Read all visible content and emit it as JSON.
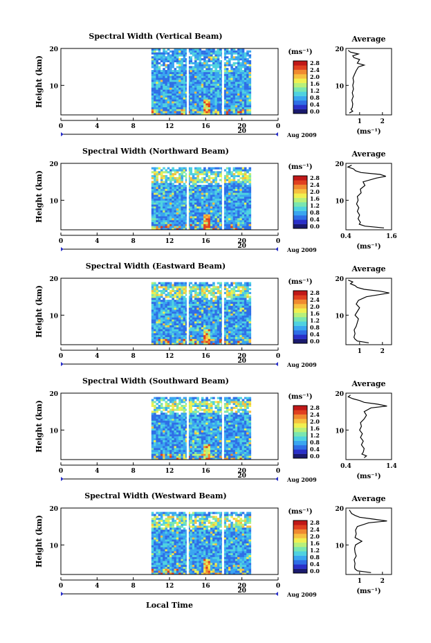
{
  "chart_data": {
    "type": "heatmap",
    "xlabel": "Local Time",
    "date_label": "Aug 2009",
    "date_day": "20",
    "unit": "(ms⁻¹)",
    "colorbar_ticks": [
      "2.8",
      "2.4",
      "2.0",
      "1.6",
      "1.2",
      "0.8",
      "0.4",
      "0.0"
    ],
    "colormap": [
      "#1a1a6e",
      "#2a30c8",
      "#2f6fe6",
      "#3aa6f0",
      "#4fd2e0",
      "#7ae6b0",
      "#b8f07a",
      "#f0f050",
      "#f6c040",
      "#f08a30",
      "#e04020",
      "#c01818"
    ],
    "x_ticks": [
      "0",
      "4",
      "8",
      "12",
      "16",
      "20",
      "0"
    ],
    "xlim": [
      0,
      24
    ],
    "ylim": [
      2,
      20
    ],
    "y_ticks": [
      "20",
      "10"
    ],
    "data_time_range": [
      10,
      21
    ],
    "gaps_hours": [
      13.9,
      17.8
    ],
    "panels": [
      {
        "title": "Spectral Width (Vertical Beam)",
        "ylabel": "Height (km)",
        "avg_title": "Average",
        "avg_xlabel": "(ms⁻¹)",
        "avg_xticks": [
          "1",
          "2"
        ],
        "avg_xlim": [
          0.4,
          2.4
        ],
        "profile": [
          [
            2.5,
            0.55
          ],
          [
            3,
            0.7
          ],
          [
            3.5,
            0.62
          ],
          [
            4,
            0.68
          ],
          [
            5,
            0.7
          ],
          [
            6,
            0.66
          ],
          [
            7,
            0.72
          ],
          [
            8,
            0.68
          ],
          [
            9,
            0.73
          ],
          [
            10,
            0.7
          ],
          [
            11,
            0.74
          ],
          [
            12,
            0.71
          ],
          [
            13,
            0.78
          ],
          [
            14,
            0.85
          ],
          [
            15,
            0.95
          ],
          [
            15.5,
            1.2
          ],
          [
            16,
            0.9
          ],
          [
            17,
            1.0
          ],
          [
            17.5,
            0.75
          ],
          [
            18,
            0.7
          ],
          [
            18.5,
            0.95
          ],
          [
            19,
            0.6
          ],
          [
            19.5,
            0.5
          ]
        ]
      },
      {
        "title": "Spectral Width (Northward Beam)",
        "ylabel": "Height (km)",
        "avg_title": "Average",
        "avg_xlabel": "(ms⁻¹)",
        "avg_xticks": [
          "0.4",
          "1.6"
        ],
        "avg_xlim": [
          0.4,
          1.6
        ],
        "profile": [
          [
            2.5,
            1.4
          ],
          [
            3,
            0.9
          ],
          [
            3.5,
            0.75
          ],
          [
            4,
            0.78
          ],
          [
            5,
            0.72
          ],
          [
            6,
            0.76
          ],
          [
            7,
            0.7
          ],
          [
            8,
            0.74
          ],
          [
            9,
            0.68
          ],
          [
            10,
            0.72
          ],
          [
            11,
            0.7
          ],
          [
            12,
            0.8
          ],
          [
            13,
            0.78
          ],
          [
            14,
            0.9
          ],
          [
            15,
            0.85
          ],
          [
            16,
            1.2
          ],
          [
            16.5,
            1.45
          ],
          [
            17,
            1.3
          ],
          [
            17.5,
            0.8
          ],
          [
            18,
            0.65
          ],
          [
            18.5,
            0.6
          ],
          [
            19,
            0.45
          ],
          [
            19.5,
            0.55
          ]
        ]
      },
      {
        "title": "Spectral Width (Eastward Beam)",
        "ylabel": "Height (km)",
        "avg_title": "Average",
        "avg_xlabel": "",
        "avg_xticks": [
          "1",
          "2"
        ],
        "avg_xlim": [
          0.4,
          2.4
        ],
        "profile": [
          [
            2.5,
            1.4
          ],
          [
            3,
            0.9
          ],
          [
            3.5,
            0.8
          ],
          [
            4,
            0.75
          ],
          [
            5,
            0.8
          ],
          [
            6,
            0.76
          ],
          [
            7,
            0.85
          ],
          [
            8,
            0.9
          ],
          [
            9,
            0.95
          ],
          [
            10,
            0.8
          ],
          [
            11,
            0.9
          ],
          [
            12,
            1.0
          ],
          [
            13,
            0.85
          ],
          [
            14,
            0.95
          ],
          [
            15,
            1.3
          ],
          [
            16,
            2.3
          ],
          [
            16.5,
            1.9
          ],
          [
            17,
            1.2
          ],
          [
            17.5,
            0.9
          ],
          [
            18,
            0.8
          ],
          [
            18.5,
            0.6
          ],
          [
            19,
            0.7
          ],
          [
            19.5,
            0.5
          ]
        ]
      },
      {
        "title": "Spectral Width (Southward Beam)",
        "ylabel": "Height (km)",
        "avg_title": "Average",
        "avg_xlabel": "(ms⁻¹)",
        "avg_xticks": [
          "0.4",
          "1.4"
        ],
        "avg_xlim": [
          0.4,
          1.4
        ],
        "profile": [
          [
            2.5,
            0.8
          ],
          [
            3,
            0.85
          ],
          [
            3.5,
            0.75
          ],
          [
            4,
            0.78
          ],
          [
            5,
            0.8
          ],
          [
            6,
            0.74
          ],
          [
            7,
            0.78
          ],
          [
            8,
            0.72
          ],
          [
            9,
            0.76
          ],
          [
            10,
            0.7
          ],
          [
            11,
            0.74
          ],
          [
            12,
            0.72
          ],
          [
            13,
            0.8
          ],
          [
            14,
            0.85
          ],
          [
            15,
            0.8
          ],
          [
            16,
            0.95
          ],
          [
            16.5,
            1.3
          ],
          [
            17,
            1.1
          ],
          [
            17.5,
            0.8
          ],
          [
            18,
            0.7
          ],
          [
            18.5,
            0.55
          ],
          [
            19,
            0.45
          ],
          [
            19.5,
            0.5
          ]
        ]
      },
      {
        "title": "Spectral Width (Westward Beam)",
        "ylabel": "Height (km)",
        "avg_title": "Average",
        "avg_xlabel": "(ms⁻¹)",
        "avg_xticks": [
          "1",
          "2"
        ],
        "avg_xlim": [
          0.4,
          2.4
        ],
        "profile": [
          [
            2.5,
            1.5
          ],
          [
            3,
            0.9
          ],
          [
            3.5,
            0.8
          ],
          [
            4,
            0.78
          ],
          [
            5,
            0.8
          ],
          [
            6,
            0.76
          ],
          [
            7,
            0.85
          ],
          [
            8,
            0.8
          ],
          [
            9,
            0.78
          ],
          [
            10,
            0.82
          ],
          [
            11,
            1.1
          ],
          [
            12,
            0.8
          ],
          [
            13,
            0.85
          ],
          [
            14,
            0.82
          ],
          [
            15,
            0.9
          ],
          [
            16,
            1.4
          ],
          [
            16.5,
            2.2
          ],
          [
            17,
            1.6
          ],
          [
            17.5,
            1.0
          ],
          [
            18,
            0.8
          ],
          [
            18.5,
            0.65
          ],
          [
            19,
            0.6
          ],
          [
            19.5,
            0.55
          ]
        ]
      }
    ]
  }
}
